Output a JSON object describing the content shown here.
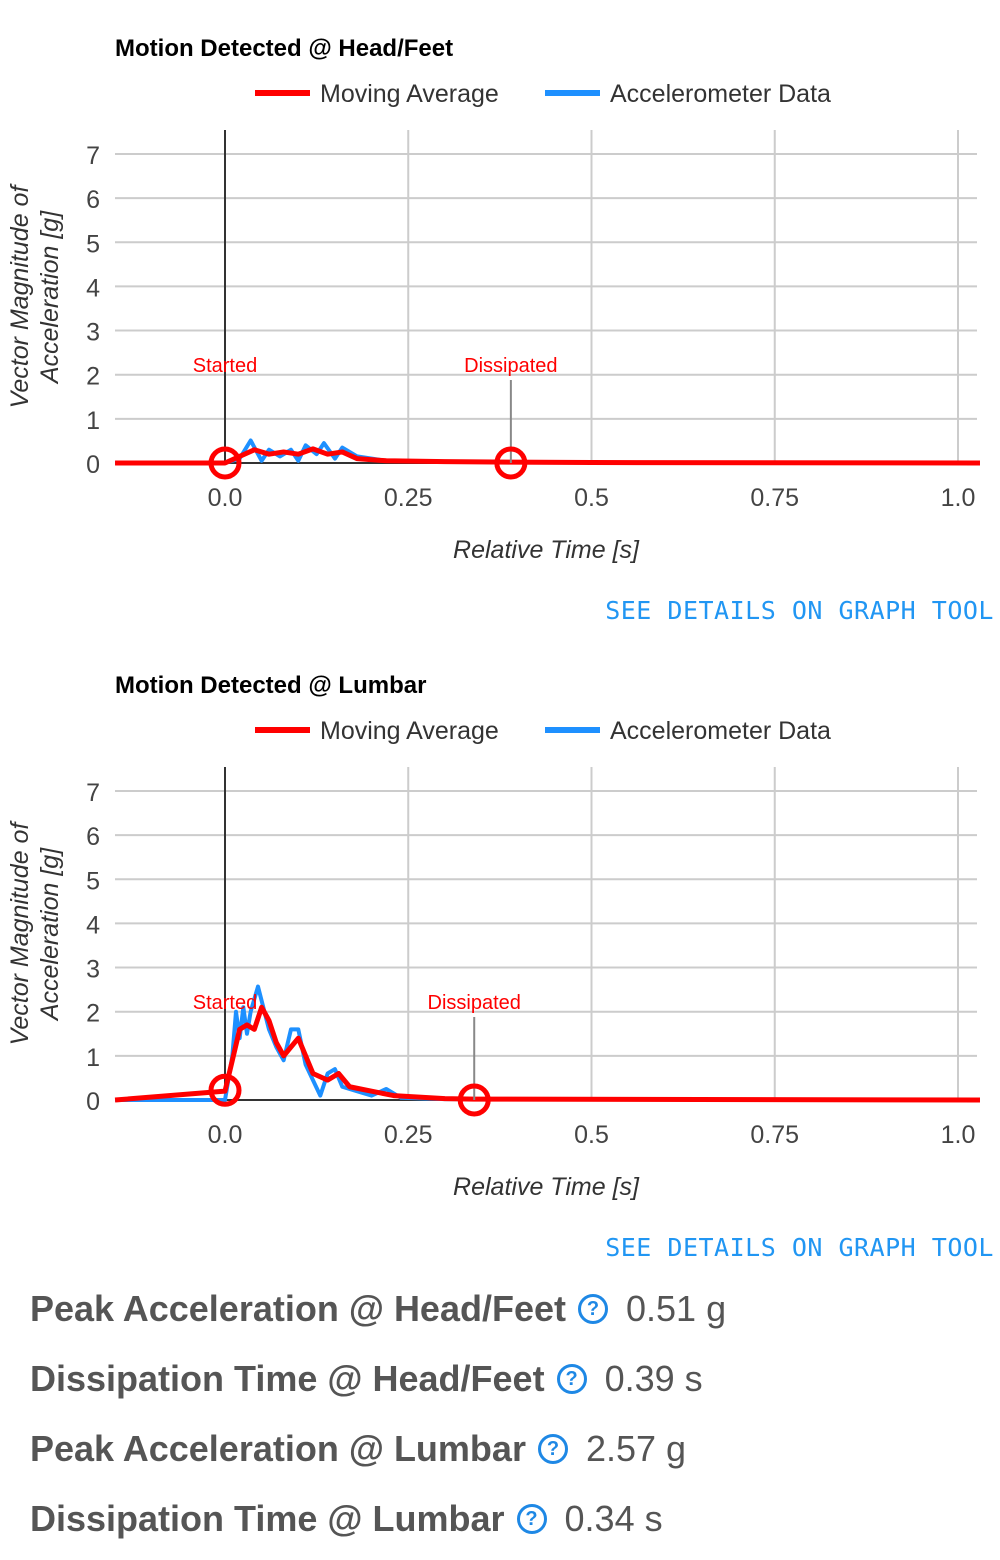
{
  "chart_data": [
    {
      "type": "line",
      "title": "Motion Detected @ Head/Feet",
      "xlabel": "Relative Time [s]",
      "ylabel": "Vector Magnitude of Acceleration [g]",
      "xlim": [
        -0.15,
        1.03
      ],
      "ylim": [
        0,
        7.5
      ],
      "xticks": [
        "0.0",
        "0.25",
        "0.5",
        "0.75",
        "1.0"
      ],
      "yticks": [
        "0",
        "1",
        "2",
        "3",
        "4",
        "5",
        "6",
        "7"
      ],
      "grid": true,
      "legend": "top",
      "series": [
        {
          "name": "Moving Average",
          "color": "#ff0000",
          "x": [
            -0.15,
            0,
            0.02,
            0.04,
            0.06,
            0.08,
            0.1,
            0.12,
            0.14,
            0.16,
            0.18,
            0.22,
            0.3,
            0.39,
            0.5,
            1.03
          ],
          "y": [
            0,
            0,
            0.15,
            0.3,
            0.2,
            0.25,
            0.2,
            0.32,
            0.2,
            0.25,
            0.1,
            0.05,
            0.03,
            0.02,
            0.01,
            0
          ]
        },
        {
          "name": "Accelerometer Data",
          "color": "#1e90ff",
          "x": [
            -0.15,
            0,
            0.02,
            0.035,
            0.05,
            0.06,
            0.075,
            0.09,
            0.1,
            0.11,
            0.125,
            0.135,
            0.15,
            0.16,
            0.18,
            0.22,
            0.3,
            0.5,
            1.03
          ],
          "y": [
            0,
            0,
            0.1,
            0.51,
            0.05,
            0.3,
            0.15,
            0.3,
            0.05,
            0.4,
            0.2,
            0.45,
            0.1,
            0.35,
            0.15,
            0.05,
            0.03,
            0.01,
            0
          ]
        }
      ],
      "annotations": [
        {
          "label": "Started",
          "x": 0,
          "y": 0
        },
        {
          "label": "Dissipated",
          "x": 0.39,
          "y": 0
        }
      ]
    },
    {
      "type": "line",
      "title": "Motion Detected @ Lumbar",
      "xlabel": "Relative Time [s]",
      "ylabel": "Vector Magnitude of Acceleration [g]",
      "xlim": [
        -0.15,
        1.03
      ],
      "ylim": [
        0,
        7.5
      ],
      "xticks": [
        "0.0",
        "0.25",
        "0.5",
        "0.75",
        "1.0"
      ],
      "yticks": [
        "0",
        "1",
        "2",
        "3",
        "4",
        "5",
        "6",
        "7"
      ],
      "grid": true,
      "legend": "top",
      "series": [
        {
          "name": "Moving Average",
          "color": "#ff0000",
          "x": [
            -0.15,
            0,
            0.01,
            0.02,
            0.03,
            0.04,
            0.05,
            0.06,
            0.07,
            0.08,
            0.1,
            0.12,
            0.14,
            0.155,
            0.17,
            0.2,
            0.23,
            0.3,
            0.34,
            1.03
          ],
          "y": [
            0,
            0.2,
            0.9,
            1.6,
            1.7,
            1.6,
            2.1,
            1.8,
            1.3,
            1.0,
            1.4,
            0.6,
            0.45,
            0.6,
            0.3,
            0.2,
            0.1,
            0.03,
            0.02,
            0
          ]
        },
        {
          "name": "Accelerometer Data",
          "color": "#1e90ff",
          "x": [
            -0.15,
            0,
            0.01,
            0.015,
            0.02,
            0.025,
            0.03,
            0.035,
            0.045,
            0.06,
            0.07,
            0.08,
            0.09,
            0.1,
            0.11,
            0.13,
            0.14,
            0.15,
            0.16,
            0.18,
            0.2,
            0.22,
            0.24,
            0.3,
            1.03
          ],
          "y": [
            0,
            0,
            1.0,
            2.0,
            1.4,
            2.1,
            1.5,
            2.0,
            2.57,
            1.6,
            1.2,
            0.9,
            1.6,
            1.6,
            0.8,
            0.1,
            0.6,
            0.7,
            0.3,
            0.2,
            0.1,
            0.25,
            0.05,
            0.02,
            0
          ]
        }
      ],
      "annotations": [
        {
          "label": "Started",
          "x": 0,
          "y": 0.22
        },
        {
          "label": "Dissipated",
          "x": 0.34,
          "y": 0
        }
      ]
    }
  ],
  "links": {
    "details": "SEE DETAILS ON GRAPH TOOL"
  },
  "stats": [
    {
      "label": "Peak Acceleration @ Head/Feet",
      "value": "0.51 g"
    },
    {
      "label": "Dissipation Time @ Head/Feet",
      "value": "0.39 s"
    },
    {
      "label": "Peak Acceleration @ Lumbar",
      "value": "2.57 g"
    },
    {
      "label": "Dissipation Time @ Lumbar",
      "value": "0.34 s"
    }
  ],
  "help_icon": "?"
}
